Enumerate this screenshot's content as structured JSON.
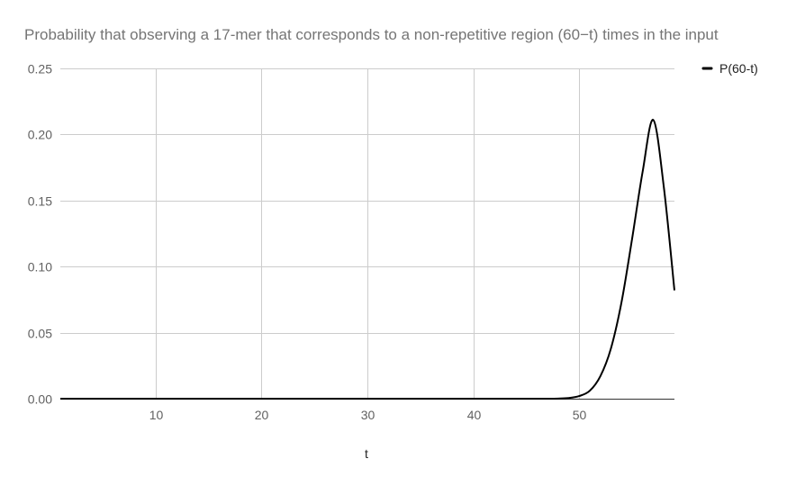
{
  "chart_data": {
    "type": "line",
    "title": "Probability that observing a 17-mer that corresponds to a non-repetitive region (60−t) times in the input",
    "xlabel": "t",
    "ylabel": "",
    "xlim": [
      1,
      59
    ],
    "ylim": [
      0,
      0.25
    ],
    "x_ticks": [
      10,
      20,
      30,
      40,
      50
    ],
    "x_tick_labels": [
      "10",
      "20",
      "30",
      "40",
      "50"
    ],
    "y_ticks": [
      0,
      0.05,
      0.1,
      0.15,
      0.2,
      0.25
    ],
    "y_tick_labels": [
      "0.00",
      "0.05",
      "0.10",
      "0.15",
      "0.20",
      "0.25"
    ],
    "grid": true,
    "legend_position": "right",
    "series": [
      {
        "name": "P(60-t)",
        "color": "#000000",
        "x": [
          1,
          2,
          3,
          4,
          5,
          6,
          7,
          8,
          9,
          10,
          11,
          12,
          13,
          14,
          15,
          16,
          17,
          18,
          19,
          20,
          21,
          22,
          23,
          24,
          25,
          26,
          27,
          28,
          29,
          30,
          31,
          32,
          33,
          34,
          35,
          36,
          37,
          38,
          39,
          40,
          41,
          42,
          43,
          44,
          45,
          46,
          47,
          48,
          49,
          50,
          51,
          52,
          53,
          54,
          55,
          56,
          57,
          58,
          59
        ],
        "y": [
          0,
          0,
          0,
          0,
          0,
          0,
          0,
          0,
          0,
          0,
          0,
          0,
          0,
          0,
          0,
          0,
          0,
          0,
          0,
          0,
          0,
          0,
          0,
          0,
          0,
          0,
          0,
          0,
          0,
          0,
          0,
          0,
          0,
          0,
          0,
          0,
          0,
          0,
          0,
          0,
          0,
          0,
          0,
          0,
          0,
          0,
          0,
          0.0001,
          0.0005,
          0.002,
          0.006,
          0.017,
          0.038,
          0.073,
          0.121,
          0.172,
          0.211,
          0.16,
          0.082
        ]
      }
    ]
  }
}
